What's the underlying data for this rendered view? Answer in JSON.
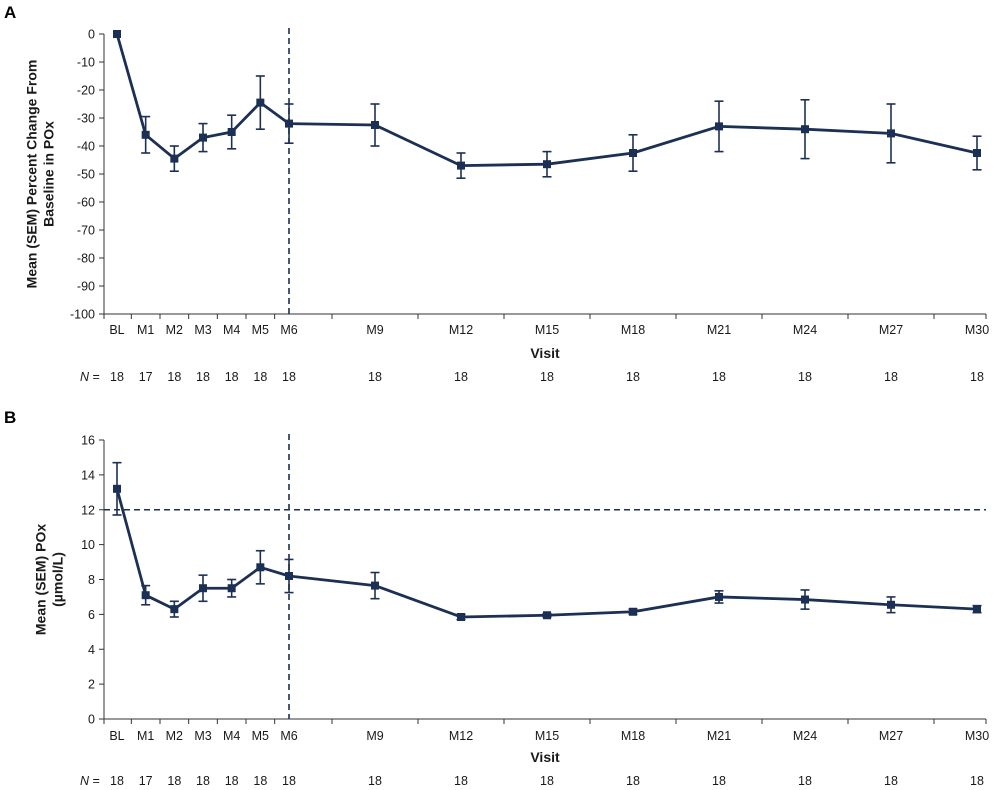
{
  "chart_data": [
    {
      "panel_label": "A",
      "type": "line",
      "ylabel_lines": [
        "Mean (SEM) Percent Change From",
        "Baseline in POx"
      ],
      "xlabel": "Visit",
      "categories": [
        "BL",
        "M1",
        "M2",
        "M3",
        "M4",
        "M5",
        "M6",
        "M9",
        "M12",
        "M15",
        "M18",
        "M21",
        "M24",
        "M27",
        "M30"
      ],
      "month_index": [
        0,
        1,
        2,
        3,
        4,
        5,
        6,
        9,
        12,
        15,
        18,
        21,
        24,
        27,
        30
      ],
      "values": [
        0,
        -36,
        -44.5,
        -37,
        -35,
        -24.5,
        -32,
        -32.5,
        -47,
        -46.5,
        -42.5,
        -33,
        -34,
        -35.5,
        -42.5
      ],
      "sem": [
        0,
        6.5,
        4.5,
        5,
        6,
        9.5,
        7,
        7.5,
        4.5,
        4.5,
        6.5,
        9,
        10.5,
        10.5,
        6
      ],
      "ylim": [
        -100,
        0
      ],
      "yticks": [
        0,
        -10,
        -20,
        -30,
        -40,
        -50,
        -60,
        -70,
        -80,
        -90,
        -100
      ],
      "vline_at": "M6",
      "n_prefix": "= ",
      "n_italic": "N",
      "n_values": [
        18,
        17,
        18,
        18,
        18,
        18,
        18,
        18,
        18,
        18,
        18,
        18,
        18,
        18,
        18
      ]
    },
    {
      "panel_label": "B",
      "type": "line",
      "ylabel_lines": [
        "Mean (SEM) POx",
        "(µmol/L)"
      ],
      "xlabel": "Visit",
      "categories": [
        "BL",
        "M1",
        "M2",
        "M3",
        "M4",
        "M5",
        "M6",
        "M9",
        "M12",
        "M15",
        "M18",
        "M21",
        "M24",
        "M27",
        "M30"
      ],
      "month_index": [
        0,
        1,
        2,
        3,
        4,
        5,
        6,
        9,
        12,
        15,
        18,
        21,
        24,
        27,
        30
      ],
      "values": [
        13.2,
        7.1,
        6.3,
        7.5,
        7.5,
        8.7,
        8.2,
        7.65,
        5.85,
        5.95,
        6.15,
        7.0,
        6.85,
        6.55,
        6.3
      ],
      "sem": [
        1.5,
        0.55,
        0.45,
        0.75,
        0.5,
        0.95,
        0.95,
        0.75,
        0.15,
        0.1,
        0.15,
        0.35,
        0.55,
        0.45,
        0.2
      ],
      "ylim": [
        0,
        16
      ],
      "yticks": [
        0,
        2,
        4,
        6,
        8,
        10,
        12,
        14,
        16
      ],
      "vline_at": "M6",
      "hline_at": 12,
      "n_prefix": "= ",
      "n_italic": "N",
      "n_values": [
        18,
        17,
        18,
        18,
        18,
        18,
        18,
        18,
        18,
        18,
        18,
        18,
        18,
        18,
        18
      ]
    }
  ],
  "colors": {
    "series": "#1c2f54",
    "text": "#1a1a1a"
  }
}
